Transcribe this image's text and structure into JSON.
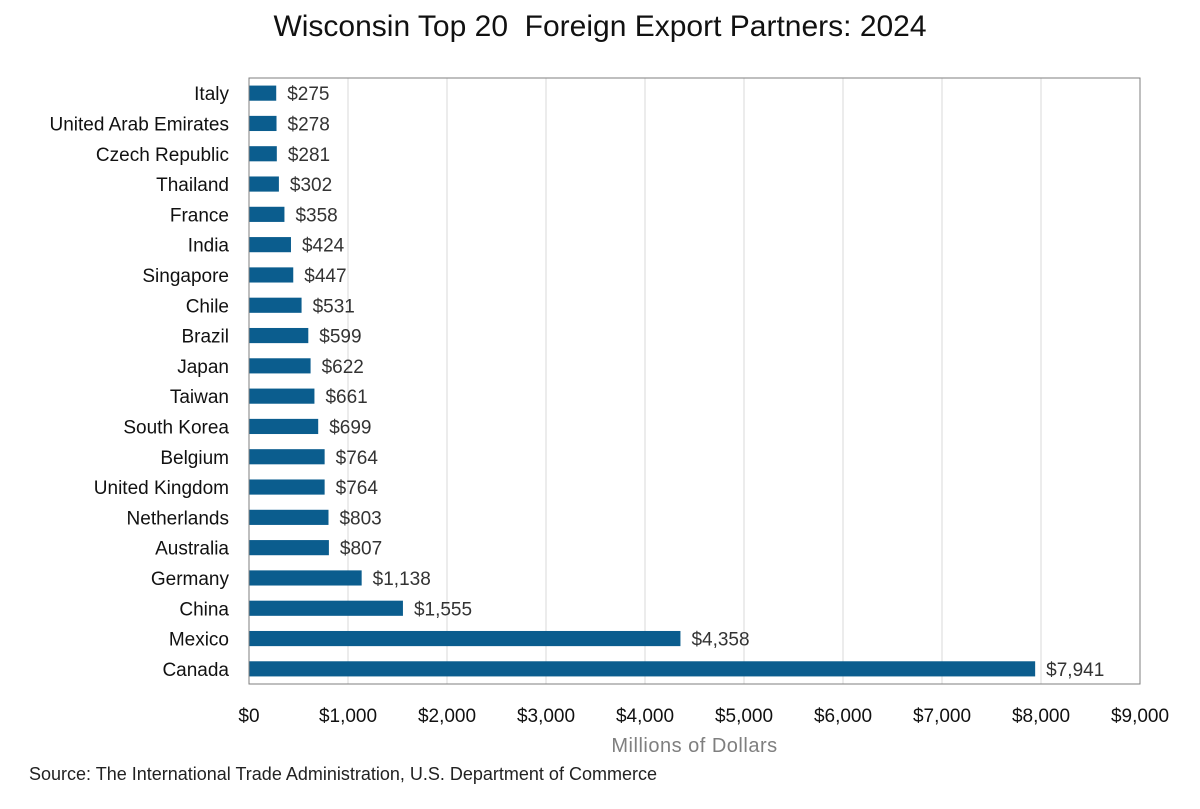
{
  "chart_data": {
    "type": "bar",
    "orientation": "horizontal",
    "title": "Wisconsin Top 20  Foreign Export Partners: 2024",
    "xlabel": "Millions of Dollars",
    "ylabel": "",
    "xlim": [
      0,
      9000
    ],
    "x_ticks": [
      0,
      1000,
      2000,
      3000,
      4000,
      5000,
      6000,
      7000,
      8000,
      9000
    ],
    "x_tick_labels": [
      "$0",
      "$1,000",
      "$2,000",
      "$3,000",
      "$4,000",
      "$5,000",
      "$6,000",
      "$7,000",
      "$8,000",
      "$9,000"
    ],
    "grid": "vertical",
    "bar_color": "#0b5d8e",
    "categories": [
      "Italy",
      "United Arab Emirates",
      "Czech Republic",
      "Thailand",
      "France",
      "India",
      "Singapore",
      "Chile",
      "Brazil",
      "Japan",
      "Taiwan",
      "South Korea",
      "Belgium",
      "United Kingdom",
      "Netherlands",
      "Australia",
      "Germany",
      "China",
      "Mexico",
      "Canada"
    ],
    "values": [
      275,
      278,
      281,
      302,
      358,
      424,
      447,
      531,
      599,
      622,
      661,
      699,
      764,
      764,
      803,
      807,
      1138,
      1555,
      4358,
      7941
    ],
    "value_labels": [
      "$275",
      "$278",
      "$281",
      "$302",
      "$358",
      "$424",
      "$447",
      "$531",
      "$599",
      "$622",
      "$661",
      "$699",
      "$764",
      "$764",
      "$803",
      "$807",
      "$1,138",
      "$1,555",
      "$4,358",
      "$7,941"
    ]
  },
  "source": "Source: The International Trade Administration, U.S. Department of Commerce"
}
